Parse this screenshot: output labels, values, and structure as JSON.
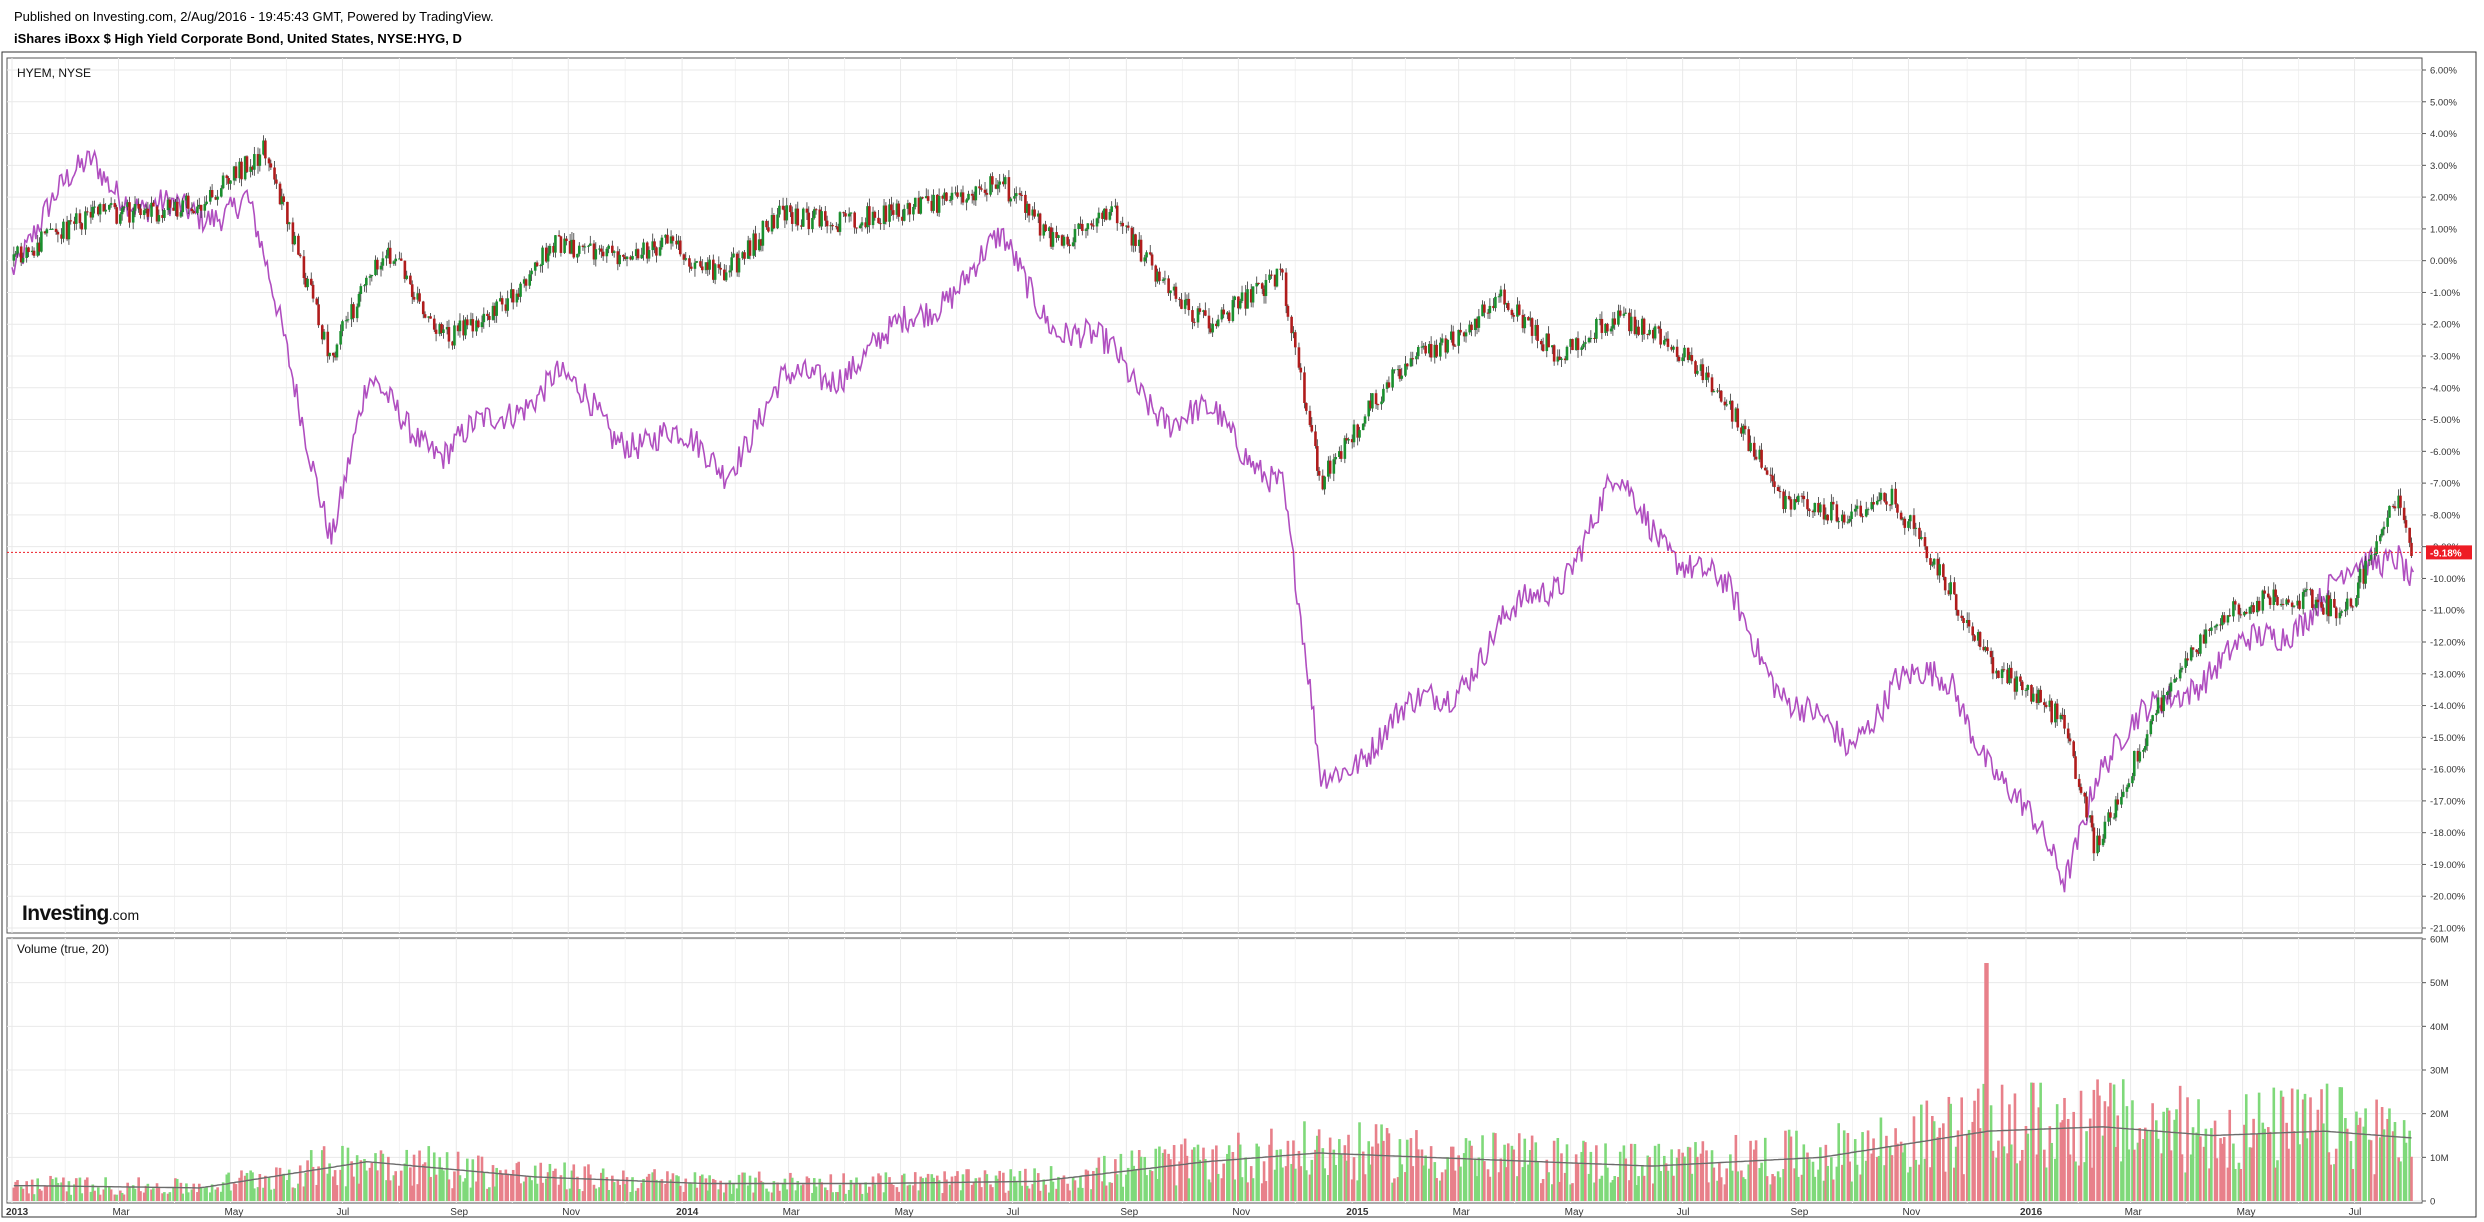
{
  "header": {
    "published": "Published on Investing.com, 2/Aug/2016 - 19:45:43 GMT, Powered by TradingView.",
    "title": "iShares iBoxx $ High Yield Corporate Bond, United States, NYSE:HYG, D"
  },
  "logo": {
    "brand": "Investing",
    "suffix": ".com"
  },
  "colors": {
    "up": "#1a8f2e",
    "down": "#b01c1c",
    "compare_line": "#b04ec0",
    "vol_up": "#7fd97a",
    "vol_down": "#e8808a",
    "vol_ma": "#6b6b6b",
    "last_price": "#ee1c25",
    "grid": "#e9e9e9"
  },
  "chart_data": [
    {
      "type": "candlestick",
      "pane": "price",
      "comparison_label": "HYEM, NYSE",
      "xlabels": [
        "2013",
        "Mar",
        "May",
        "Jul",
        "Sep",
        "Nov",
        "2014",
        "Mar",
        "May",
        "Jul",
        "Sep",
        "Nov",
        "2015",
        "Mar",
        "May",
        "Jul",
        "Sep",
        "Nov",
        "2016",
        "Mar",
        "May",
        "Jul"
      ],
      "ylabels": [
        "6.00%",
        "5.00%",
        "4.00%",
        "3.00%",
        "2.00%",
        "1.00%",
        "0.00%",
        "-1.00%",
        "-2.00%",
        "-3.00%",
        "-4.00%",
        "-5.00%",
        "-6.00%",
        "-7.00%",
        "-8.00%",
        "-9.00%",
        "-10.00%",
        "-11.00%",
        "-12.00%",
        "-13.00%",
        "-14.00%",
        "-15.00%",
        "-16.00%",
        "-17.00%",
        "-18.00%",
        "-19.00%",
        "-20.00%",
        "-21.00%"
      ],
      "ylim": [
        -21,
        6.4
      ],
      "last_value_label": "-9.18%",
      "last_value": -9.18,
      "series": [
        {
          "name": "HYG",
          "x": [
            "2013-01-02",
            "2013-02-15",
            "2013-03-15",
            "2013-04-15",
            "2013-05-20",
            "2013-06-25",
            "2013-07-25",
            "2013-08-25",
            "2013-09-25",
            "2013-10-25",
            "2013-11-25",
            "2013-12-25",
            "2014-01-25",
            "2014-02-25",
            "2014-03-25",
            "2014-04-25",
            "2014-05-25",
            "2014-06-25",
            "2014-07-25",
            "2014-08-25",
            "2014-09-25",
            "2014-10-16",
            "2014-11-25",
            "2014-12-16",
            "2015-01-25",
            "2015-02-25",
            "2015-03-25",
            "2015-04-25",
            "2015-05-25",
            "2015-06-25",
            "2015-07-25",
            "2015-08-25",
            "2015-09-29",
            "2015-10-25",
            "2015-11-25",
            "2015-12-14",
            "2016-01-25",
            "2016-02-11",
            "2016-03-25",
            "2016-04-25",
            "2016-05-25",
            "2016-06-27",
            "2016-07-25",
            "2016-08-02"
          ],
          "y": [
            0.0,
            1.5,
            1.5,
            1.8,
            3.5,
            -3.0,
            0.5,
            -2.5,
            -1.5,
            0.5,
            0.2,
            0.5,
            -0.5,
            1.5,
            1.2,
            1.5,
            1.8,
            2.5,
            0.5,
            1.5,
            -1.0,
            -2.0,
            -0.5,
            -7.0,
            -3.5,
            -2.5,
            -1.2,
            -3.0,
            -1.8,
            -2.5,
            -4.5,
            -7.5,
            -8.0,
            -7.5,
            -10.5,
            -12.5,
            -14.5,
            -18.5,
            -13.0,
            -11.0,
            -10.5,
            -11.0,
            -7.5,
            -9.18
          ]
        },
        {
          "name": "HYEM",
          "x": [
            "2013-01-02",
            "2013-02-15",
            "2013-03-15",
            "2013-04-15",
            "2013-05-10",
            "2013-06-05",
            "2013-06-25",
            "2013-07-15",
            "2013-08-25",
            "2013-09-25",
            "2013-10-25",
            "2013-11-25",
            "2013-12-25",
            "2014-01-25",
            "2014-02-25",
            "2014-03-25",
            "2014-04-25",
            "2014-05-25",
            "2014-06-25",
            "2014-07-25",
            "2014-08-25",
            "2014-09-25",
            "2014-10-20",
            "2014-11-25",
            "2014-12-16",
            "2015-01-25",
            "2015-02-25",
            "2015-03-25",
            "2015-04-25",
            "2015-05-25",
            "2015-06-25",
            "2015-07-25",
            "2015-08-25",
            "2015-09-29",
            "2015-10-25",
            "2015-11-25",
            "2015-12-14",
            "2016-01-25",
            "2016-02-11",
            "2016-03-25",
            "2016-04-25",
            "2016-05-25",
            "2016-06-27",
            "2016-07-25",
            "2016-08-02"
          ],
          "y": [
            0.0,
            3.3,
            1.5,
            1.5,
            2.0,
            -4.0,
            -8.5,
            -4.0,
            -6.0,
            -5.0,
            -3.5,
            -5.5,
            -5.5,
            -6.5,
            -4.0,
            -3.5,
            -2.5,
            -1.0,
            0.5,
            -2.0,
            -3.0,
            -5.0,
            -5.0,
            -7.0,
            -16.5,
            -14.5,
            -13.5,
            -11.5,
            -10.0,
            -7.0,
            -9.0,
            -10.5,
            -13.5,
            -15.5,
            -13.0,
            -13.5,
            -15.5,
            -19.5,
            -16.0,
            -13.5,
            -12.5,
            -11.5,
            -10.0,
            -9.0,
            -10.0
          ]
        }
      ]
    },
    {
      "type": "bar",
      "pane": "volume",
      "label": "Volume (true, 20)",
      "ylabels": [
        "60M",
        "50M",
        "40M",
        "30M",
        "20M",
        "10M",
        "0"
      ],
      "ylim": [
        0,
        60
      ],
      "y_unit": "M",
      "series": [
        {
          "name": "Volume",
          "x": [
            "2013-01",
            "2013-04",
            "2013-07",
            "2013-10",
            "2014-01",
            "2014-04",
            "2014-07",
            "2014-10",
            "2014-12",
            "2015-03",
            "2015-06",
            "2015-09",
            "2015-12",
            "2016-02",
            "2016-04",
            "2016-06",
            "2016-08"
          ],
          "y": [
            3.5,
            3.0,
            9.0,
            5.5,
            4.0,
            4.0,
            4.5,
            9.0,
            11.0,
            9.5,
            8.0,
            10.0,
            16.0,
            17.0,
            15.0,
            16.0,
            14.0
          ]
        }
      ],
      "peak_bar": {
        "x": "2015-12-14",
        "y": 54.5
      }
    }
  ]
}
